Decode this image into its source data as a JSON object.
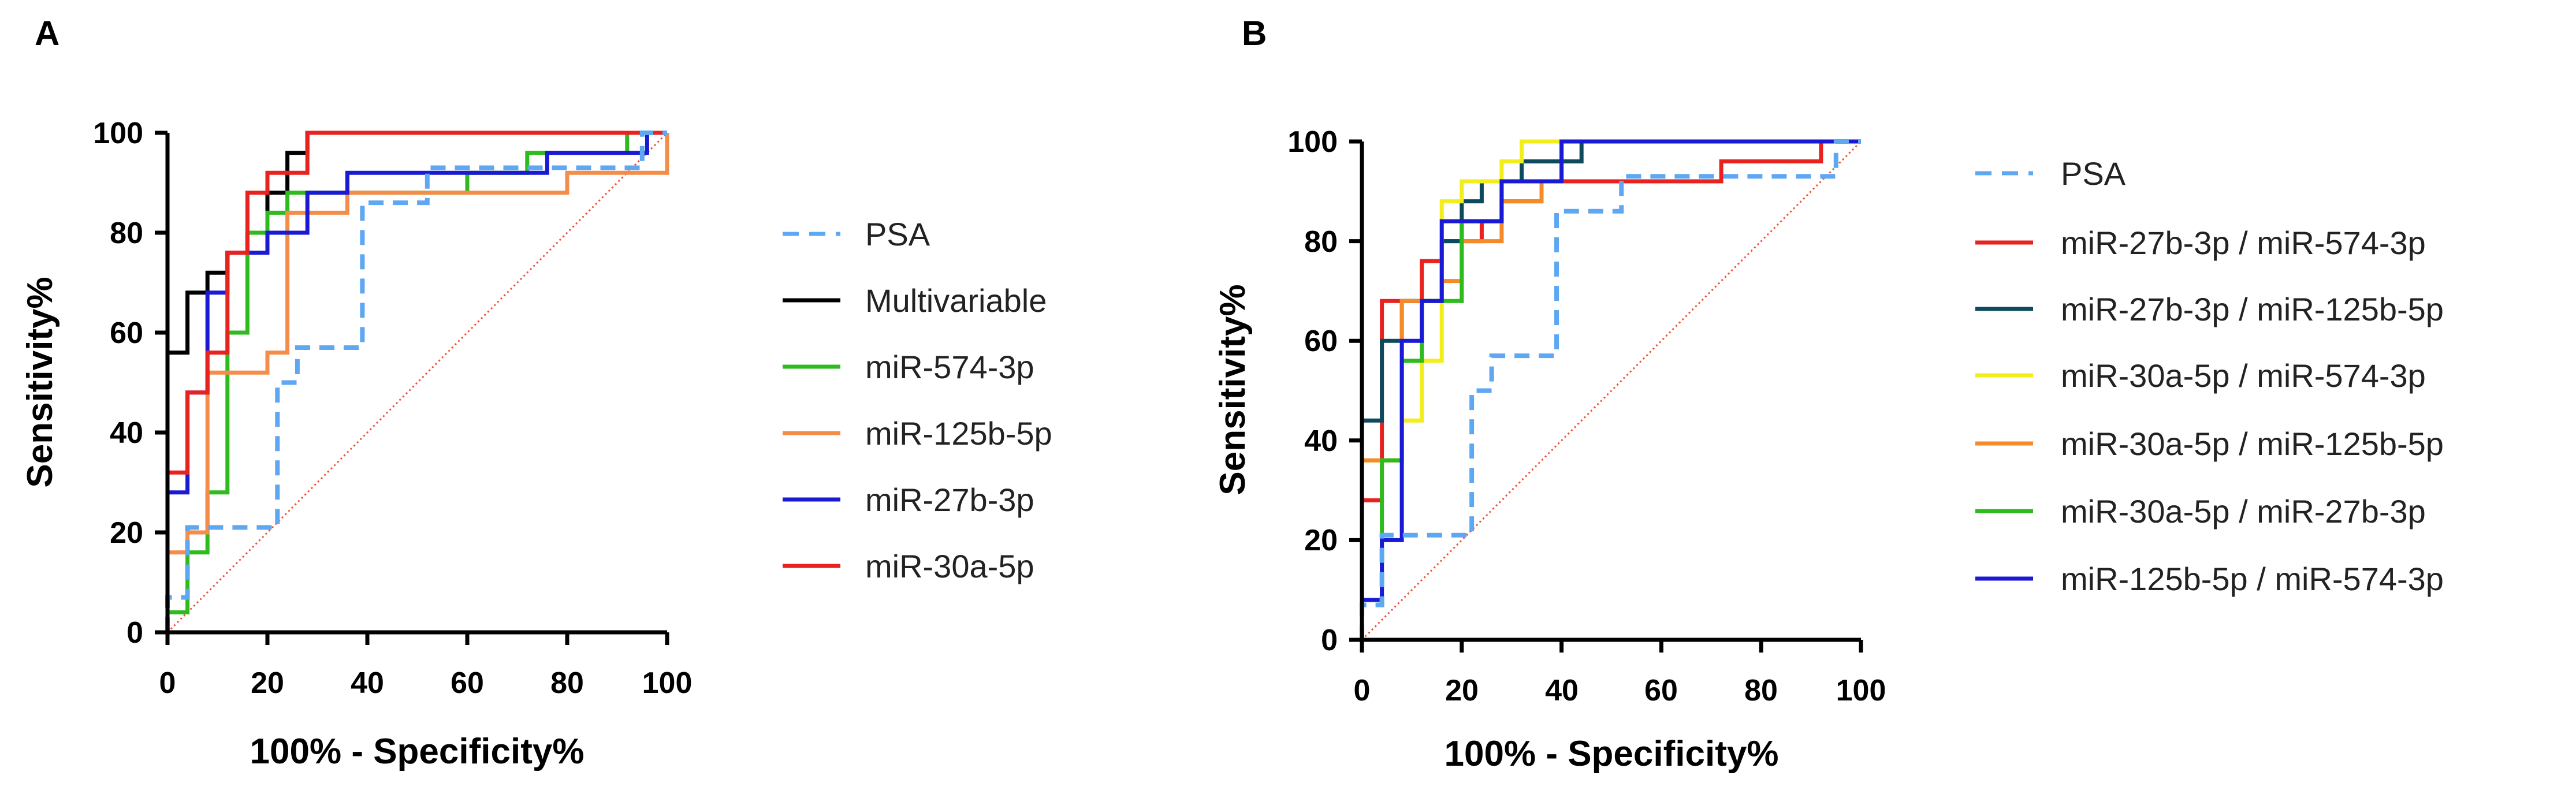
{
  "chart_data": [
    {
      "panel": "A",
      "type": "line",
      "subtype": "ROC",
      "xlabel": "100% - Specificity%",
      "ylabel": "Sensitivity%",
      "xlim": [
        0,
        100
      ],
      "ylim": [
        0,
        100
      ],
      "xticks": [
        "0",
        "20",
        "40",
        "60",
        "80",
        "100"
      ],
      "yticks": [
        "0",
        "20",
        "40",
        "60",
        "80",
        "100"
      ],
      "reference_line": {
        "color": "#e8533b",
        "style": "dotted"
      },
      "legend_position": "right",
      "series": [
        {
          "name": "PSA",
          "color": "#5ea7f2",
          "dashed": true,
          "x": [
            0,
            0,
            4,
            4,
            22,
            22,
            26,
            26,
            39,
            39,
            52,
            52,
            95,
            95,
            100
          ],
          "y": [
            0,
            7,
            7,
            21,
            21,
            50,
            50,
            57,
            57,
            86,
            86,
            93,
            93,
            100,
            100
          ]
        },
        {
          "name": "Multivariable",
          "color": "#000000",
          "dashed": false,
          "x": [
            0,
            0,
            4,
            4,
            8,
            8,
            12,
            12,
            16,
            16,
            20,
            20,
            24,
            24,
            28,
            28,
            32,
            32,
            100
          ],
          "y": [
            0,
            56,
            56,
            68,
            68,
            72,
            72,
            76,
            76,
            80,
            80,
            88,
            88,
            96,
            96,
            100,
            100,
            100,
            100
          ]
        },
        {
          "name": "miR-574-3p",
          "color": "#2dbb1e",
          "dashed": false,
          "x": [
            0,
            0,
            4,
            4,
            8,
            8,
            12,
            12,
            16,
            16,
            20,
            20,
            24,
            24,
            60,
            60,
            72,
            72,
            92,
            92,
            100
          ],
          "y": [
            0,
            4,
            4,
            16,
            16,
            28,
            28,
            60,
            60,
            80,
            80,
            84,
            84,
            88,
            88,
            92,
            92,
            96,
            96,
            100,
            100
          ]
        },
        {
          "name": "miR-125b-5p",
          "color": "#f58d4a",
          "dashed": false,
          "x": [
            0,
            0,
            4,
            4,
            8,
            8,
            20,
            20,
            24,
            24,
            36,
            36,
            48,
            48,
            80,
            80,
            100,
            100
          ],
          "y": [
            0,
            16,
            16,
            20,
            20,
            52,
            52,
            56,
            56,
            84,
            84,
            88,
            88,
            88,
            88,
            92,
            92,
            100
          ]
        },
        {
          "name": "miR-27b-3p",
          "color": "#1a1ad4",
          "dashed": false,
          "x": [
            0,
            0,
            4,
            4,
            8,
            8,
            12,
            12,
            20,
            20,
            28,
            28,
            36,
            36,
            76,
            76,
            96,
            96,
            100
          ],
          "y": [
            0,
            28,
            28,
            48,
            48,
            68,
            68,
            76,
            76,
            80,
            80,
            88,
            88,
            92,
            92,
            96,
            96,
            100,
            100
          ]
        },
        {
          "name": "miR-30a-5p",
          "color": "#e8231f",
          "dashed": false,
          "x": [
            0,
            0,
            4,
            4,
            8,
            8,
            12,
            12,
            16,
            16,
            20,
            20,
            28,
            28,
            100
          ],
          "y": [
            0,
            32,
            32,
            48,
            48,
            56,
            56,
            76,
            76,
            88,
            88,
            92,
            92,
            100,
            100
          ]
        }
      ]
    },
    {
      "panel": "B",
      "type": "line",
      "subtype": "ROC",
      "xlabel": "100% - Specificity%",
      "ylabel": "Sensitivity%",
      "xlim": [
        0,
        100
      ],
      "ylim": [
        0,
        100
      ],
      "xticks": [
        "0",
        "20",
        "40",
        "60",
        "80",
        "100"
      ],
      "yticks": [
        "0",
        "20",
        "40",
        "60",
        "80",
        "100"
      ],
      "reference_line": {
        "color": "#e8533b",
        "style": "dotted"
      },
      "legend_position": "right",
      "series": [
        {
          "name": "PSA",
          "color": "#5ea7f2",
          "dashed": true,
          "x": [
            0,
            0,
            4,
            4,
            22,
            22,
            26,
            26,
            39,
            39,
            52,
            52,
            95,
            95,
            100
          ],
          "y": [
            0,
            7,
            7,
            21,
            21,
            50,
            50,
            57,
            57,
            86,
            86,
            93,
            93,
            100,
            100
          ]
        },
        {
          "name": "miR-27b-3p / miR-574-3p",
          "color": "#e8231f",
          "dashed": false,
          "x": [
            0,
            0,
            4,
            4,
            12,
            12,
            16,
            16,
            24,
            24,
            28,
            28,
            36,
            36,
            72,
            72,
            92,
            92,
            100
          ],
          "y": [
            0,
            28,
            28,
            68,
            68,
            76,
            76,
            80,
            80,
            84,
            84,
            88,
            88,
            92,
            92,
            96,
            96,
            100,
            100
          ]
        },
        {
          "name": "miR-27b-3p / miR-125b-5p",
          "color": "#0d4a5e",
          "dashed": false,
          "x": [
            0,
            0,
            4,
            4,
            8,
            8,
            16,
            16,
            20,
            20,
            24,
            24,
            32,
            32,
            44,
            44,
            100
          ],
          "y": [
            0,
            44,
            44,
            60,
            60,
            68,
            68,
            80,
            80,
            88,
            88,
            92,
            92,
            96,
            96,
            100,
            100
          ]
        },
        {
          "name": "miR-30a-5p / miR-574-3p",
          "color": "#f2ee1c",
          "dashed": false,
          "x": [
            0,
            0,
            8,
            8,
            12,
            12,
            16,
            16,
            20,
            20,
            28,
            28,
            32,
            32,
            100
          ],
          "y": [
            0,
            36,
            36,
            44,
            44,
            56,
            56,
            88,
            88,
            92,
            92,
            96,
            96,
            100,
            100
          ]
        },
        {
          "name": "miR-30a-5p / miR-125b-5p",
          "color": "#f58a2b",
          "dashed": false,
          "x": [
            0,
            0,
            8,
            8,
            16,
            16,
            20,
            20,
            28,
            28,
            36,
            36,
            40,
            40,
            100
          ],
          "y": [
            0,
            36,
            36,
            68,
            68,
            72,
            72,
            80,
            80,
            88,
            88,
            92,
            92,
            100,
            100
          ]
        },
        {
          "name": "miR-30a-5p / miR-27b-3p",
          "color": "#2dbb1e",
          "dashed": false,
          "x": [
            0,
            0,
            4,
            4,
            8,
            8,
            12,
            12,
            20,
            20,
            28,
            28,
            40,
            40,
            100
          ],
          "y": [
            0,
            8,
            8,
            36,
            36,
            56,
            56,
            68,
            68,
            84,
            84,
            92,
            92,
            100,
            100
          ]
        },
        {
          "name": "miR-125b-5p / miR-574-3p",
          "color": "#1a1ad4",
          "dashed": false,
          "x": [
            0,
            0,
            4,
            4,
            8,
            8,
            12,
            12,
            16,
            16,
            28,
            28,
            40,
            40,
            100
          ],
          "y": [
            0,
            8,
            8,
            20,
            20,
            60,
            60,
            68,
            68,
            84,
            84,
            92,
            92,
            100,
            100
          ]
        }
      ]
    }
  ]
}
